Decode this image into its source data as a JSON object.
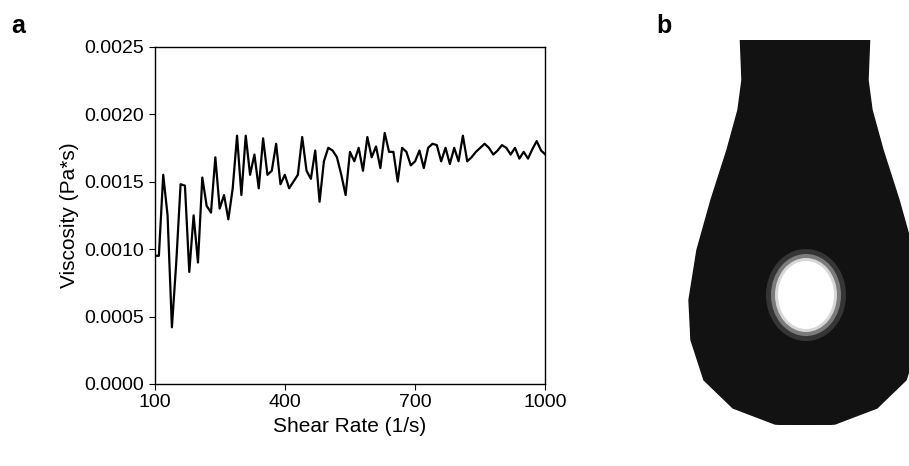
{
  "chart_data": {
    "type": "line",
    "panel_label": "a",
    "x_label": "Shear Rate (1/s)",
    "y_label": "Viscosity (Pa*s)",
    "color": "#000000",
    "x": [
      100,
      110,
      120,
      130,
      140,
      150,
      160,
      170,
      180,
      190,
      200,
      210,
      220,
      230,
      240,
      250,
      260,
      270,
      280,
      290,
      300,
      310,
      320,
      330,
      340,
      350,
      360,
      370,
      380,
      390,
      400,
      410,
      420,
      430,
      440,
      450,
      460,
      470,
      480,
      490,
      500,
      510,
      520,
      530,
      540,
      550,
      560,
      570,
      580,
      590,
      600,
      610,
      620,
      630,
      640,
      650,
      660,
      670,
      680,
      690,
      700,
      710,
      720,
      730,
      740,
      750,
      760,
      770,
      780,
      790,
      800,
      810,
      820,
      830,
      840,
      850,
      860,
      870,
      880,
      890,
      900,
      910,
      920,
      930,
      940,
      950,
      960,
      970,
      980,
      990,
      1000
    ],
    "values": [
      0.00095,
      0.00095,
      0.00155,
      0.00125,
      0.00042,
      0.0009,
      0.00148,
      0.00147,
      0.00083,
      0.00125,
      0.0009,
      0.00153,
      0.00132,
      0.00127,
      0.00168,
      0.0013,
      0.0014,
      0.00122,
      0.00145,
      0.00184,
      0.0014,
      0.00184,
      0.00155,
      0.0017,
      0.00145,
      0.00182,
      0.00155,
      0.00158,
      0.00178,
      0.00148,
      0.00155,
      0.00145,
      0.0015,
      0.00155,
      0.00183,
      0.00158,
      0.00152,
      0.00173,
      0.00135,
      0.00165,
      0.00175,
      0.00173,
      0.00168,
      0.00155,
      0.0014,
      0.00172,
      0.00165,
      0.00175,
      0.00158,
      0.00183,
      0.00168,
      0.00176,
      0.0016,
      0.00186,
      0.00172,
      0.00172,
      0.0015,
      0.00175,
      0.00172,
      0.00162,
      0.00165,
      0.00173,
      0.0016,
      0.00175,
      0.00178,
      0.00177,
      0.00165,
      0.00175,
      0.00163,
      0.00175,
      0.00165,
      0.00184,
      0.00165,
      0.00168,
      0.00172,
      0.00175,
      0.00178,
      0.00175,
      0.0017,
      0.00173,
      0.00177,
      0.00175,
      0.0017,
      0.00175,
      0.00167,
      0.00172,
      0.00167,
      0.00174,
      0.0018,
      0.00173,
      0.0017
    ],
    "xlim": [
      100,
      1000
    ],
    "xticks": [
      100,
      400,
      700,
      1000
    ],
    "ylim": [
      0,
      0.0025
    ],
    "yticks": [
      {
        "value": 0,
        "label": "0.0000"
      },
      {
        "value": 0.0005,
        "label": "0.0005"
      },
      {
        "value": 0.001,
        "label": "0.0010"
      },
      {
        "value": 0.0015,
        "label": "0.0015"
      },
      {
        "value": 0.002,
        "label": "0.0020"
      },
      {
        "value": 0.0025,
        "label": "0.0025"
      }
    ],
    "grid": false
  },
  "image": {
    "panel_label": "b"
  }
}
